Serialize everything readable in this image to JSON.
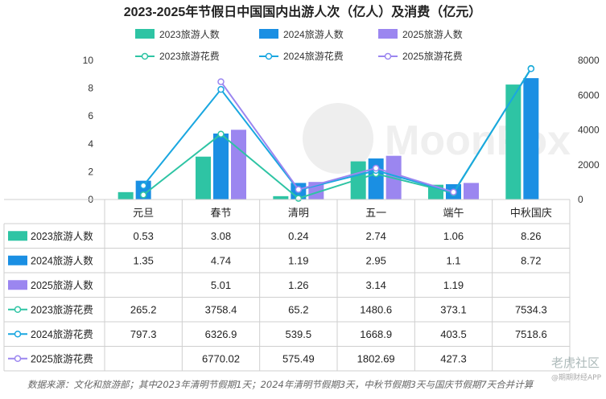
{
  "chart_data": {
    "type": "bar",
    "title": "2023-2025年节假日中国国内出游人次（亿人）及消费（亿元）",
    "categories": [
      "元旦",
      "春节",
      "清明",
      "五一",
      "端午",
      "中秋国庆"
    ],
    "bar_series": [
      {
        "name": "2023旅游人数",
        "values": [
          0.53,
          3.08,
          0.24,
          2.74,
          1.06,
          8.26
        ],
        "color": "#2ec4a4"
      },
      {
        "name": "2024旅游人数",
        "values": [
          1.35,
          4.74,
          1.19,
          2.95,
          1.1,
          8.72
        ],
        "color": "#1a8fe3"
      },
      {
        "name": "2025旅游人数",
        "values": [
          null,
          5.01,
          1.26,
          3.14,
          1.19,
          null
        ],
        "color": "#9b86f0"
      }
    ],
    "line_series": [
      {
        "name": "2023旅游花费",
        "values": [
          265.2,
          3758.4,
          65.2,
          1480.6,
          373.1,
          7534.3
        ],
        "color": "#2ec4a4"
      },
      {
        "name": "2024旅游花费",
        "values": [
          797.3,
          6326.9,
          539.5,
          1668.9,
          403.5,
          7518.6
        ],
        "color": "#1aa7e0"
      },
      {
        "name": "2025旅游花费",
        "values": [
          null,
          6770.02,
          575.49,
          1802.69,
          427.3,
          null
        ],
        "color": "#9b86f0"
      }
    ],
    "table_text": [
      [
        "0.53",
        "3.08",
        "0.24",
        "2.74",
        "1.06",
        "8.26"
      ],
      [
        "1.35",
        "4.74",
        "1.19",
        "2.95",
        "1.1",
        "8.72"
      ],
      [
        "",
        "5.01",
        "1.26",
        "3.14",
        "1.19",
        ""
      ],
      [
        "265.2",
        "3758.4",
        "65.2",
        "1480.6",
        "373.1",
        "7534.3"
      ],
      [
        "797.3",
        "6326.9",
        "539.5",
        "1668.9",
        "403.5",
        "7518.6"
      ],
      [
        "",
        "6770.02",
        "575.49",
        "1802.69",
        "427.3",
        ""
      ]
    ],
    "left_axis": {
      "range": [
        0,
        10
      ],
      "ticks": [
        "0",
        "2",
        "4",
        "6",
        "8",
        "10"
      ]
    },
    "right_axis": {
      "range": [
        0,
        8000
      ],
      "ticks": [
        "0",
        "2000",
        "4000",
        "6000",
        "8000"
      ]
    },
    "legend_placement": "top",
    "watermark": "MoonFox"
  },
  "footer": {
    "source": "数据来源：文化和旅游部；其中2023年清明节假期1天；2024年清明节假期3天，中秋节假期3天与国庆节假期7天合并计算",
    "wm_main": "老虎社区",
    "wm_sub": "@期期财经APP"
  }
}
